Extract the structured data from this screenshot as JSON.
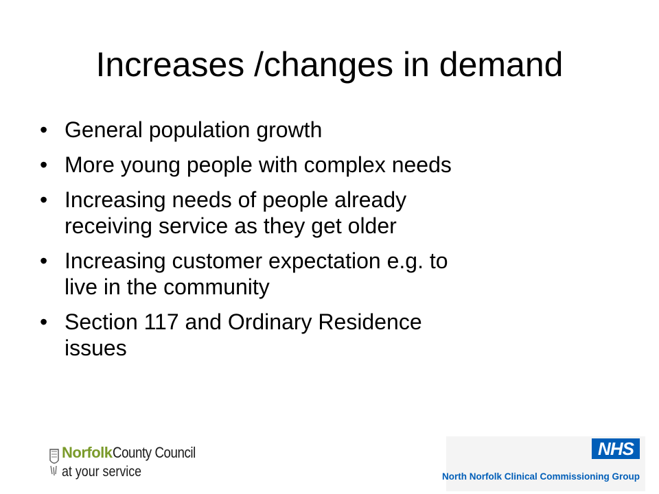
{
  "slide": {
    "title": "Increases /changes in demand",
    "bullets": [
      {
        "text_lines": [
          "General population growth"
        ]
      },
      {
        "text_lines": [
          "More young people with complex needs"
        ]
      },
      {
        "text_lines": [
          "Increasing needs of people already",
          "receiving service as they get older"
        ]
      },
      {
        "text_lines": [
          "Increasing customer expectation e.g. to",
          "live in the community"
        ]
      },
      {
        "text_lines": [
          "Section 117 and Ordinary Residence",
          "issues"
        ]
      }
    ],
    "bullet_glyph": "•"
  },
  "footer": {
    "ncc_logo": {
      "brand": "Norfolk",
      "brand_suffix": " County Council",
      "tagline": "at your service",
      "brand_color": "#7a9a2a"
    },
    "nhs_logo": {
      "badge": "NHS",
      "organisation": "North Norfolk Clinical Commissioning Group",
      "color": "#005eb8"
    }
  }
}
